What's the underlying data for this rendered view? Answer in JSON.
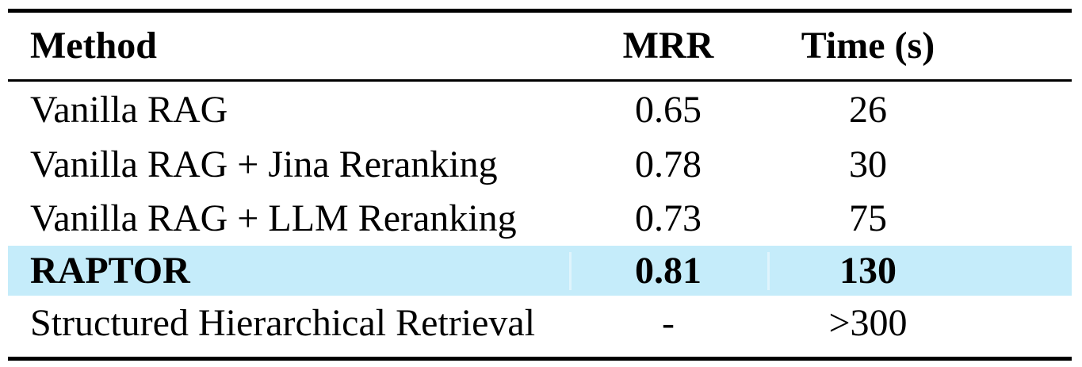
{
  "theme": {
    "background": "#ffffff",
    "text_color": "#000000",
    "rule_color": "#000000",
    "highlight_color": "#c5ecfa"
  },
  "table": {
    "columns": [
      {
        "label": "Method"
      },
      {
        "label": "MRR"
      },
      {
        "label": "Time (s)"
      }
    ],
    "rows": [
      {
        "method": "Vanilla RAG",
        "mrr": "0.65",
        "time": "26"
      },
      {
        "method": "Vanilla RAG + Jina Reranking",
        "mrr": "0.78",
        "time": "30"
      },
      {
        "method": "Vanilla RAG + LLM Reranking",
        "mrr": "0.73",
        "time": "75"
      },
      {
        "method": "RAPTOR",
        "mrr": "0.81",
        "time": "130",
        "highlighted": true,
        "bold": true
      },
      {
        "method": "Structured Hierarchical Retrieval",
        "mrr": "-",
        "time": ">300"
      }
    ]
  },
  "chart_data": {
    "type": "table",
    "title": "",
    "columns": [
      "Method",
      "MRR",
      "Time (s)"
    ],
    "rows": [
      [
        "Vanilla RAG",
        0.65,
        26
      ],
      [
        "Vanilla RAG + Jina Reranking",
        0.78,
        30
      ],
      [
        "Vanilla RAG + LLM Reranking",
        0.73,
        75
      ],
      [
        "RAPTOR",
        0.81,
        130
      ],
      [
        "Structured Hierarchical Retrieval",
        null,
        ">300"
      ]
    ],
    "highlighted_row": "RAPTOR"
  }
}
